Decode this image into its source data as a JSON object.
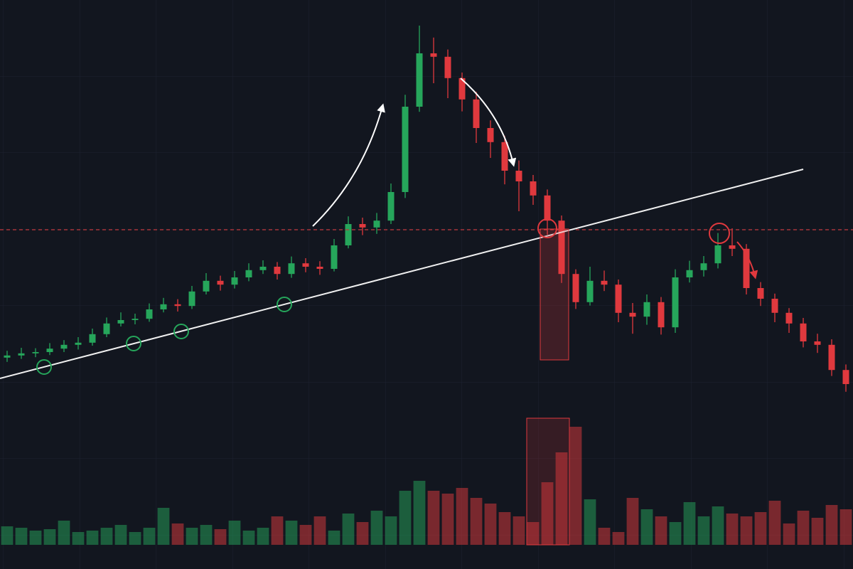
{
  "chart_data": {
    "type": "candlestick",
    "categories": [
      null,
      null,
      null,
      null,
      null,
      null,
      null,
      null,
      null,
      null,
      null,
      null,
      null,
      null,
      null,
      null,
      null,
      null,
      null,
      null,
      null,
      null,
      null,
      null,
      null,
      null,
      null,
      null,
      null,
      null,
      null,
      null,
      null,
      null,
      null,
      null,
      null,
      null,
      null,
      null,
      null,
      null,
      null,
      null,
      null,
      null,
      null,
      null,
      null,
      null,
      null,
      null,
      null,
      null,
      null,
      null,
      null,
      null,
      null,
      null
    ],
    "open": [
      16.2,
      16.7,
      17.2,
      17.5,
      18.3,
      19.2,
      19.7,
      21.7,
      24.2,
      25,
      25.3,
      27.5,
      28.7,
      28.3,
      31.7,
      34.2,
      33.3,
      35,
      36.7,
      37.5,
      35.8,
      38.3,
      37.5,
      37,
      42.5,
      47.5,
      46.7,
      48.3,
      55,
      75,
      87.5,
      86.7,
      81.7,
      76.7,
      70,
      66.7,
      60,
      57.5,
      54.2,
      48.3,
      35.8,
      29.2,
      34.2,
      33.3,
      26.7,
      25.8,
      29.2,
      23.3,
      35,
      36.7,
      38.3,
      42.5,
      41.7,
      32.5,
      30,
      26.7,
      24.2,
      20,
      19.2,
      13.3
    ],
    "high": [
      17.8,
      18.5,
      18.4,
      19.6,
      20.3,
      21.0,
      23.0,
      25.6,
      26.8,
      26.5,
      28.9,
      30.2,
      29.9,
      33.0,
      36.0,
      35.4,
      36.5,
      38.3,
      39.0,
      38.6,
      39.9,
      39.5,
      38.8,
      44.0,
      49.3,
      49.0,
      50.1,
      57.0,
      77.8,
      94.0,
      91.2,
      88.4,
      83.0,
      78.5,
      71.8,
      68.2,
      62.4,
      59.0,
      55.6,
      49.5,
      36.9,
      37.5,
      36.6,
      34.5,
      29.0,
      31.0,
      30.4,
      36.9,
      38.9,
      40.0,
      45.4,
      46.5,
      42.8,
      33.9,
      31.2,
      27.8,
      25.5,
      21.8,
      20.5,
      14.6
    ],
    "low": [
      15.2,
      15.9,
      16.3,
      16.8,
      17.5,
      18.1,
      19.0,
      21.0,
      23.5,
      24.0,
      24.6,
      26.8,
      27.0,
      27.6,
      31.0,
      31.9,
      32.4,
      34.1,
      35.8,
      34.5,
      34.9,
      36.2,
      35.6,
      36.4,
      41.8,
      44.9,
      45.2,
      47.5,
      53.6,
      73.8,
      80.5,
      77.0,
      73.9,
      66.5,
      63.0,
      56.8,
      50.5,
      52.0,
      45.0,
      33.7,
      27.6,
      28.4,
      31.8,
      24.5,
      21.8,
      23.9,
      21.6,
      22.0,
      33.8,
      35.2,
      37.1,
      40.0,
      31.0,
      28.3,
      24.5,
      22.0,
      18.6,
      17.3,
      11.9,
      8.2
    ],
    "close": [
      16.7,
      17.2,
      17.5,
      18.3,
      19.2,
      19.7,
      21.7,
      24.2,
      25,
      25.3,
      27.5,
      28.7,
      28.3,
      31.7,
      34.2,
      33.3,
      35,
      36.7,
      37.5,
      35.8,
      38.3,
      37.5,
      37,
      42.5,
      47.5,
      46.7,
      48.3,
      55,
      75,
      87.5,
      86.7,
      81.7,
      76.7,
      70,
      66.7,
      60,
      57.5,
      54.2,
      48.3,
      35.8,
      29.2,
      34.2,
      33.3,
      26.7,
      25.8,
      29.2,
      23.3,
      35,
      36.7,
      38.3,
      42.5,
      41.7,
      32.5,
      30,
      26.7,
      24.2,
      20,
      19.2,
      13.3,
      10
    ],
    "volume": [
      13,
      12,
      10,
      11,
      17,
      9,
      10,
      12,
      14,
      9,
      12,
      26,
      15,
      12,
      14,
      11,
      17,
      10,
      12,
      20,
      17,
      14,
      20,
      10,
      22,
      16,
      24,
      20,
      38,
      45,
      38,
      36,
      40,
      33,
      29,
      23,
      20,
      16,
      44,
      65,
      83,
      32,
      12,
      9,
      33,
      25,
      20,
      16,
      30,
      20,
      27,
      22,
      20,
      23,
      31,
      15,
      24,
      19,
      28,
      25
    ],
    "up_color": "#26a65b",
    "down_color": "#e0393e",
    "ylim": [
      0,
      100
    ],
    "volume_ylim": [
      0,
      100
    ]
  }
}
